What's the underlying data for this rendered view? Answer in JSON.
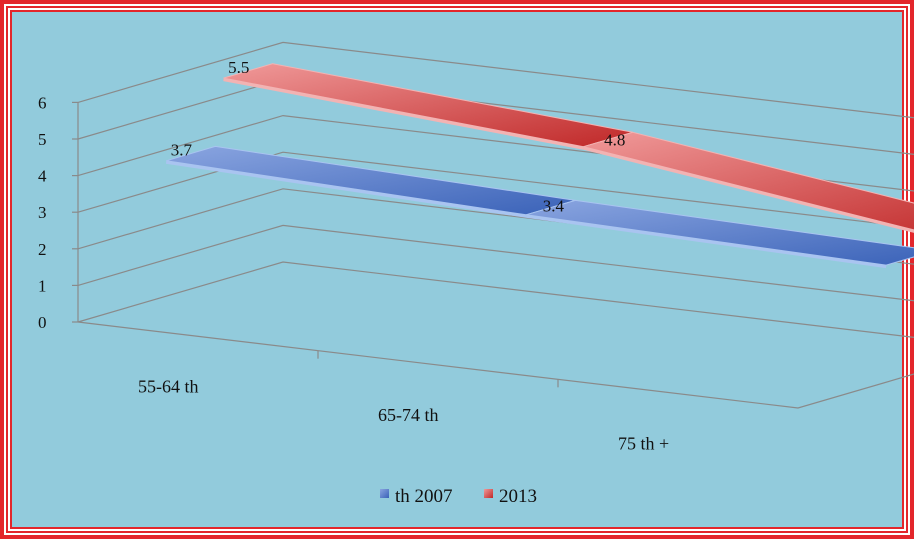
{
  "chart_data": {
    "type": "line",
    "variant": "3d-ribbon",
    "categories": [
      "55-64 th",
      "65-74 th",
      "75 th +"
    ],
    "series": [
      {
        "name": "th 2007",
        "values": [
          3.7,
          3.4,
          3.2
        ],
        "color": "#4e79c7"
      },
      {
        "name": "2013",
        "values": [
          5.5,
          4.8,
          3.5
        ],
        "color": "#d84848"
      }
    ],
    "y_ticks": [
      "0",
      "1",
      "2",
      "3",
      "4",
      "5",
      "6"
    ],
    "ylim": [
      0,
      6
    ],
    "grid": true,
    "legend_position": "bottom",
    "background_color": "#92cbdc",
    "border_color": "#e3262b"
  }
}
